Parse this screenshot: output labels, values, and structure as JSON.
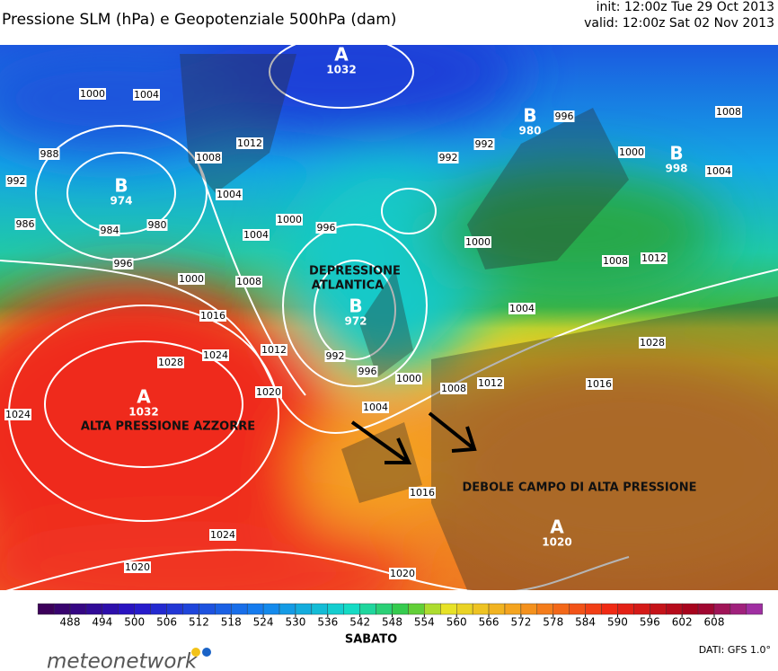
{
  "header": {
    "title": "Pressione SLM (hPa) e Geopotenziale 500hPa (dam)",
    "init": "init: 12:00z Tue 29 Oct 2013",
    "valid": "valid: 12:00z Sat 02 Nov 2013"
  },
  "isobar_labels": [
    1000,
    1004,
    988,
    992,
    986,
    984,
    980,
    996,
    1000,
    1016,
    1028,
    1024,
    1024,
    1008,
    1012,
    1004,
    1004,
    1000,
    996,
    1008,
    1012,
    1020,
    992,
    992,
    996,
    1008,
    1000,
    1004,
    1000,
    1008,
    1012,
    1004,
    1028,
    1016,
    992,
    996,
    1000,
    1004,
    1008,
    1012,
    1016,
    1024,
    1020,
    1020
  ],
  "centers": [
    {
      "letter": "A",
      "value": 1032
    },
    {
      "letter": "B",
      "value": 980
    },
    {
      "letter": "B",
      "value": 998
    },
    {
      "letter": "B",
      "value": 974
    },
    {
      "letter": "B",
      "value": 972
    },
    {
      "letter": "A",
      "value": 1032
    },
    {
      "letter": "A",
      "value": 1020
    }
  ],
  "annotations": [
    "DEPRESSIONE",
    "ATLANTICA",
    "ALTA PRESSIONE AZZORRE",
    "DEBOLE CAMPO DI ALTA PRESSIONE"
  ],
  "colorbar": {
    "ticks": [
      488,
      494,
      500,
      506,
      512,
      518,
      524,
      530,
      536,
      542,
      548,
      554,
      560,
      566,
      572,
      578,
      584,
      590,
      596,
      602,
      608
    ]
  },
  "footer": {
    "day": "SABATO",
    "source": "DATI:  GFS  1.0°",
    "brand": "meteonetwork"
  }
}
